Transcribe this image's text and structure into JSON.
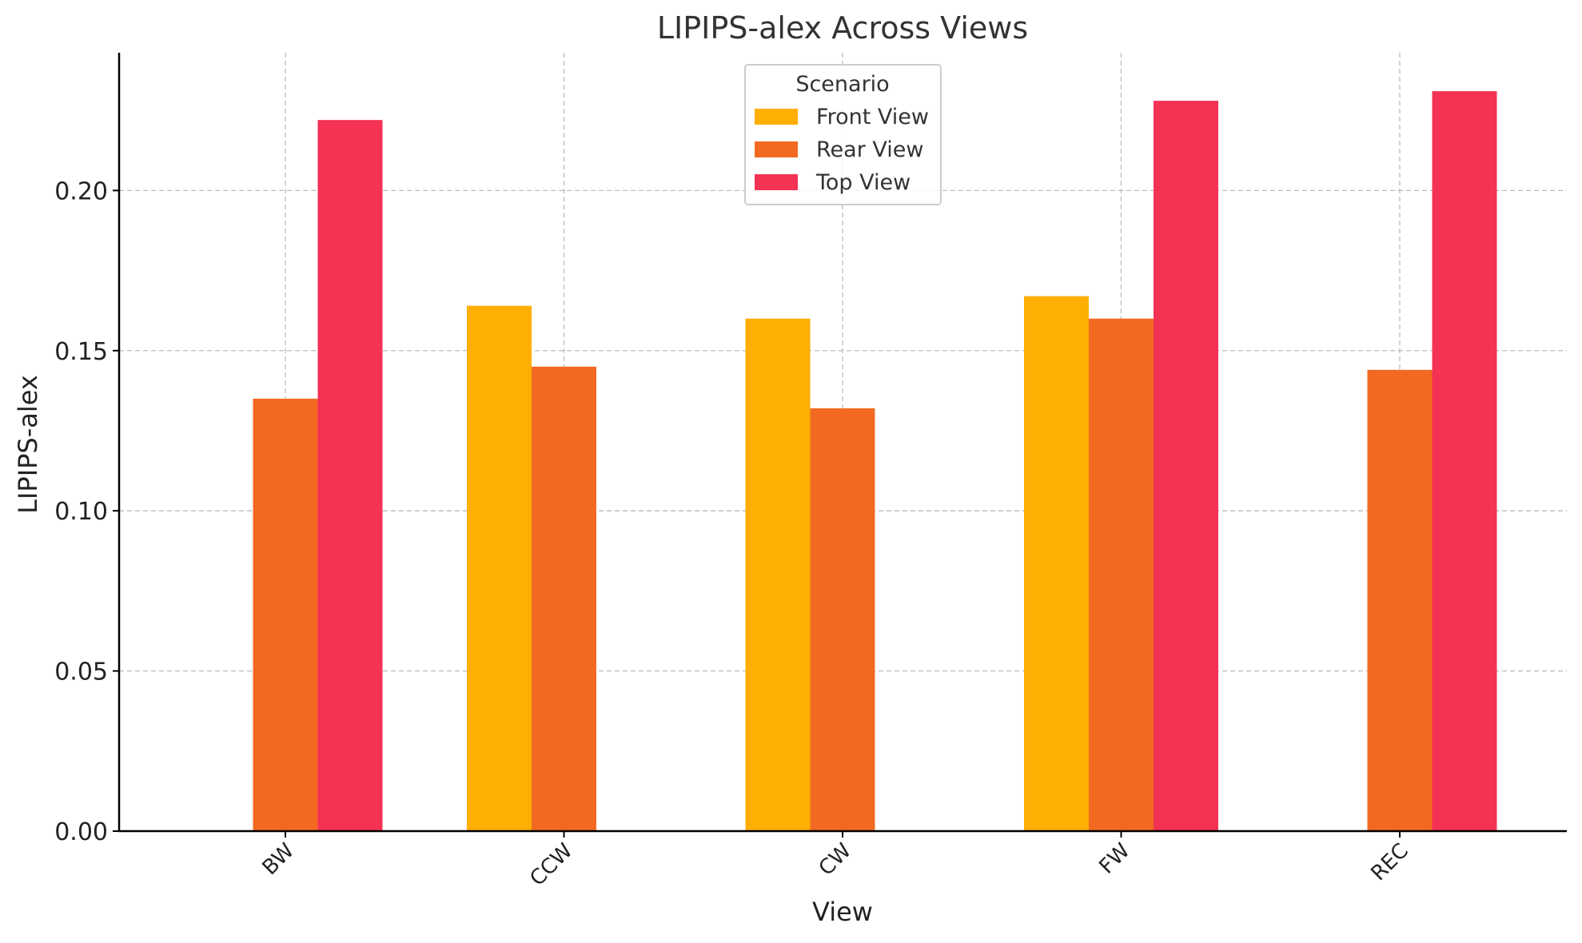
{
  "chart_data": {
    "type": "bar",
    "title": "LIPIPS-alex Across Views",
    "xlabel": "View",
    "ylabel": "LIPIPS-alex",
    "categories": [
      "BW",
      "CCW",
      "CW",
      "FW",
      "REC"
    ],
    "series": [
      {
        "name": "Front View",
        "color": "#FFAE03",
        "values": [
          null,
          0.164,
          0.16,
          0.167,
          null
        ]
      },
      {
        "name": "Rear View",
        "color": "#F26A21",
        "values": [
          0.135,
          0.145,
          0.132,
          0.16,
          0.144
        ]
      },
      {
        "name": "Top View",
        "color": "#F43254",
        "values": [
          0.222,
          null,
          null,
          0.228,
          0.231
        ]
      }
    ],
    "yticks": [
      "0.00",
      "0.05",
      "0.10",
      "0.15",
      "0.20"
    ],
    "ylim": [
      0,
      0.243
    ],
    "grid": true,
    "legend": {
      "title": "Scenario",
      "position": "top-center"
    }
  }
}
